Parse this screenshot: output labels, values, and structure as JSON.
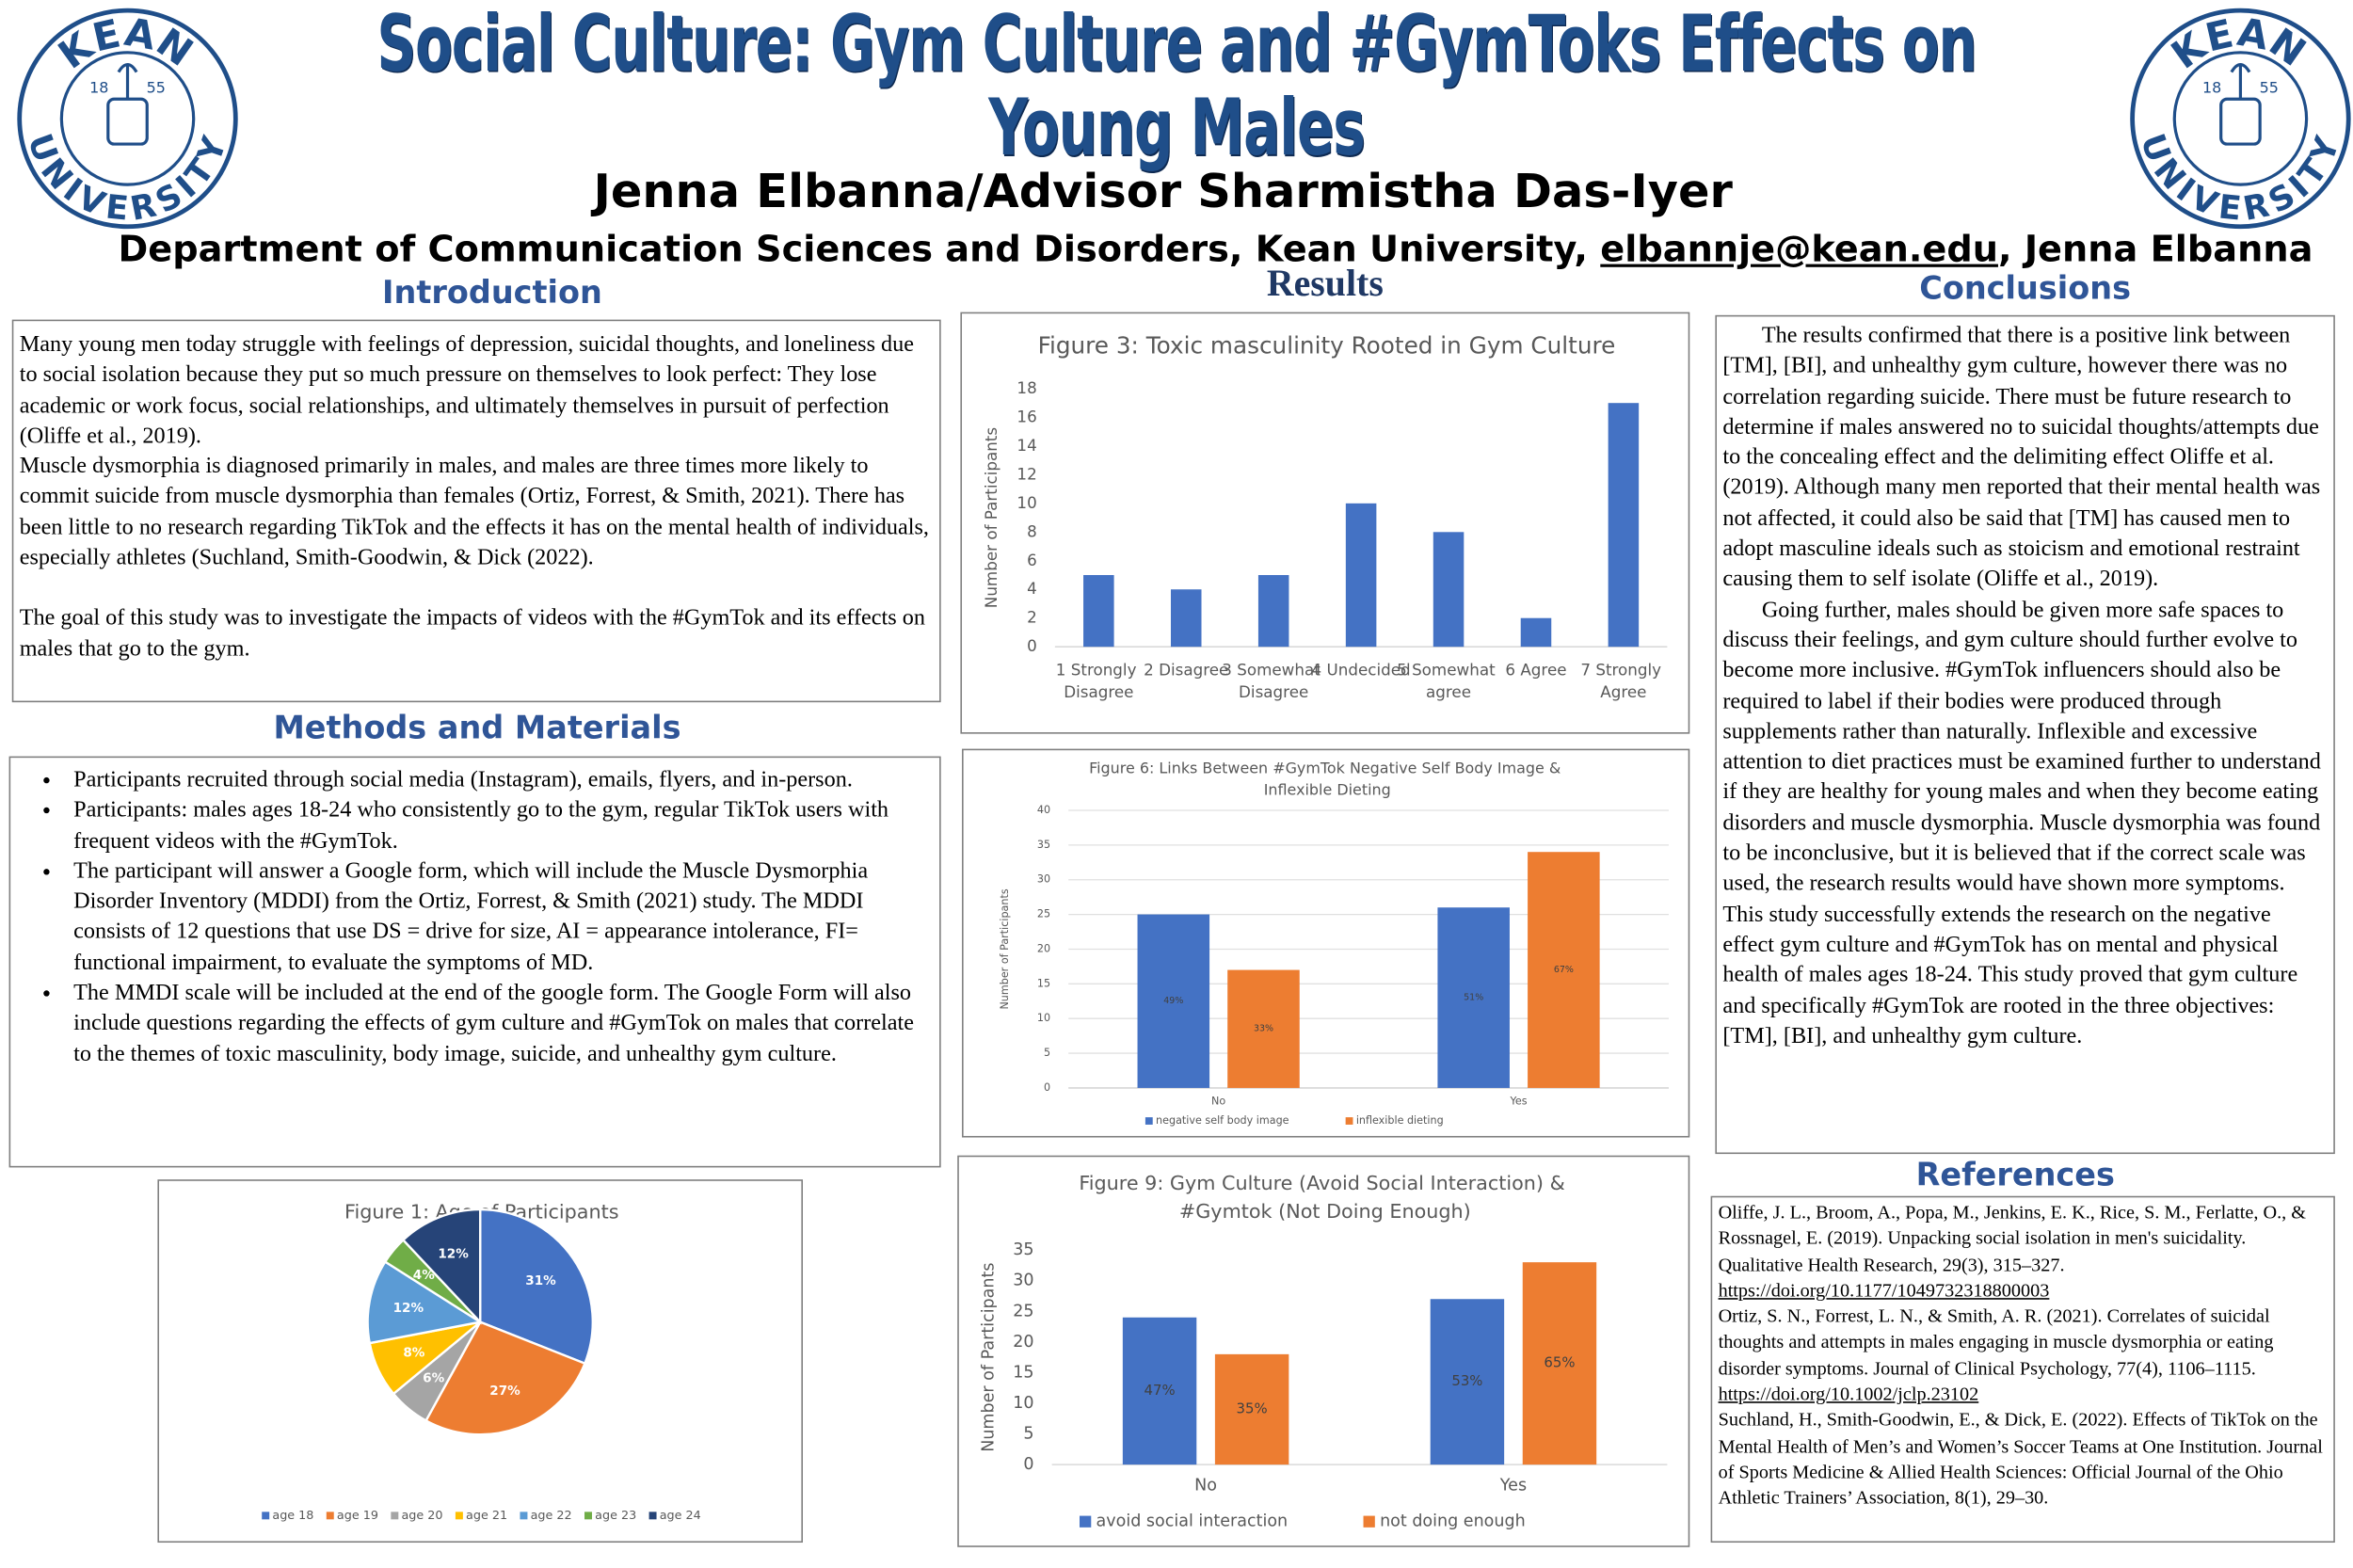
{
  "header": {
    "title": "Social Culture: Gym Culture and #GymToks Effects on  Young Males",
    "author": "Jenna Elbanna/Advisor Sharmistha Das-Iyer",
    "department": {
      "text": "Department of Communication Sciences and Disorders, Kean University, ",
      "email": "elbannje@kean.edu",
      "suffix": ", Jenna Elbanna"
    }
  },
  "logo": {
    "top": "KEAN",
    "bottom": "UNIVERSITY",
    "founded": [
      "18",
      "55"
    ]
  },
  "introduction": {
    "heading": "Introduction",
    "paragraphs": [
      "Many young men today struggle with feelings of depression, suicidal thoughts, and loneliness due to social isolation because they put so much pressure on themselves to look perfect: They lose academic or work focus, social relationships, and ultimately themselves in pursuit of perfection (Oliffe et al., 2019).",
      "Muscle dysmorphia is diagnosed primarily in males, and males are three times more likely to commit suicide from muscle dysmorphia than females (Ortiz, Forrest, & Smith, 2021). There has been little to no research regarding TikTok and the effects it has on the mental health of individuals, especially athletes (Suchland, Smith-Goodwin, & Dick (2022).",
      "The goal of this study was to investigate the impacts of videos with the #GymTok and its effects on males that go to the gym."
    ]
  },
  "methods": {
    "heading": "Methods and Materials",
    "bullets": [
      "Participants recruited through social media (Instagram), emails, flyers, and in-person.",
      "Participants: males ages 18-24 who consistently go to the gym, regular TikTok users with frequent videos with the #GymTok.",
      "The participant will answer a Google form, which will include the Muscle Dysmorphia Disorder Inventory (MDDI) from the Ortiz, Forrest, & Smith (2021) study. The MDDI consists of 12 questions that use DS = drive for size, AI = appearance intolerance, FI= functional impairment, to evaluate the symptoms of MD.",
      "The MMDI scale will be included at the end of the google form. The Google Form will also include questions regarding the effects of gym culture and #GymTok on males that correlate to the themes of toxic masculinity, body image, suicide, and unhealthy gym culture."
    ]
  },
  "results": {
    "heading": "Results"
  },
  "conclusions": {
    "heading": "Conclusions",
    "paragraphs": [
      "The results confirmed that there is a positive link between [TM], [BI], and unhealthy gym culture, however there was no correlation regarding suicide. There must be future research to determine if males answered no to suicidal thoughts/attempts due to the concealing effect and the delimiting effect Oliffe et al. (2019). Although many men reported that their mental health was not affected, it could also be said that [TM] has caused men to adopt masculine ideals such as stoicism and emotional restraint causing them to self isolate (Oliffe et al., 2019).",
      "Going further, males should be given more safe spaces to discuss their feelings, and gym culture should further evolve to become more inclusive. #GymTok influencers should also be required to label if their bodies were produced through supplements rather than naturally. Inflexible and excessive attention to diet practices must be examined further to understand if they are healthy for young males and when they become eating disorders and muscle dysmorphia. Muscle dysmorphia was found to be inconclusive, but it is believed that if the correct scale was used, the research results would have shown more symptoms. This study successfully extends the research on the negative effect gym culture and #GymTok has on mental and physical health of males ages 18-24. This study proved that gym culture and specifically #GymTok are rooted in the three objectives: [TM], [BI], and unhealthy gym culture."
    ]
  },
  "references": {
    "heading": "References",
    "entries": [
      {
        "text": "Oliffe, J. L., Broom, A., Popa, M., Jenkins, E. K., Rice, S. M., Ferlatte, O., & Rossnagel, E. (2019). Unpacking social isolation in men's suicidality. Qualitative Health Research, 29(3), 315–327. ",
        "url": "https://doi.org/10.1177/1049732318800003"
      },
      {
        "text": "Ortiz, S. N., Forrest, L. N., & Smith, A. R. (2021). Correlates of suicidal thoughts and attempts in males engaging in muscle dysmorphia or eating disorder symptoms. Journal of Clinical Psychology, 77(4), 1106–1115. ",
        "url": "https://doi.org/10.1002/jclp.23102"
      },
      {
        "text": "Suchland, H., Smith-Goodwin, E., & Dick, E. (2022). Effects of TikTok on the Mental Health of Men’s and Women’s Soccer Teams at One Institution. Journal of Sports Medicine & Allied Health Sciences: Official Journal of the Ohio Athletic Trainers’ Association, 8(1), 29–30."
      }
    ]
  },
  "chart_data": [
    {
      "type": "bar",
      "title": "Figure 3: Toxic masculinity Rooted in Gym Culture",
      "y_label": "Number of Participants",
      "categories": [
        "1 Strongly Disagree",
        "2 Disagree",
        "3 Somewhat Disagree",
        "4 Undecided",
        "5 Somewhat agree",
        "6 Agree",
        "7 Strongly Agree"
      ],
      "values": [
        5,
        4,
        5,
        10,
        8,
        2,
        17
      ],
      "color": "#4472c4",
      "ylim": [
        0,
        18
      ],
      "yticks": [
        0,
        2,
        4,
        6,
        8,
        10,
        12,
        14,
        16,
        18
      ],
      "grid": false
    },
    {
      "type": "bar",
      "title": "Figure 6: Links Between #GymTok Negative Self Body Image & Inflexible Dieting",
      "y_label": "Number of Participants",
      "categories": [
        "No",
        "Yes"
      ],
      "series": [
        {
          "name": "negative self body image",
          "color": "#4472c4",
          "values": [
            25,
            26
          ],
          "percent_labels": [
            "49%",
            "51%"
          ]
        },
        {
          "name": "inflexible dieting",
          "color": "#ed7d31",
          "values": [
            17,
            34
          ],
          "percent_labels": [
            "33%",
            "67%"
          ]
        }
      ],
      "ylim": [
        0,
        40
      ],
      "yticks": [
        0,
        5,
        10,
        15,
        20,
        25,
        30,
        35,
        40
      ],
      "grid": true
    },
    {
      "type": "bar",
      "title": "Figure 9: Gym Culture (Avoid Social Interaction) & #Gymtok (Not Doing Enough)",
      "y_label": "Number of Participants",
      "categories": [
        "No",
        "Yes"
      ],
      "series": [
        {
          "name": "avoid social interaction",
          "color": "#4472c4",
          "values": [
            24,
            27
          ],
          "percent_labels": [
            "47%",
            "53%"
          ]
        },
        {
          "name": "not doing enough",
          "color": "#ed7d31",
          "values": [
            18,
            33
          ],
          "percent_labels": [
            "35%",
            "65%"
          ]
        }
      ],
      "ylim": [
        0,
        35
      ],
      "yticks": [
        0,
        5,
        10,
        15,
        20,
        25,
        30,
        35
      ],
      "grid": false
    },
    {
      "type": "pie",
      "title": "Figure 1: Age of Participants",
      "categories": [
        "age 18",
        "age 19",
        "age 20",
        "age 21",
        "age 22",
        "age 23",
        "age 24"
      ],
      "values": [
        31,
        27,
        6,
        8,
        12,
        4,
        12
      ],
      "value_labels": [
        "31%",
        "27%",
        "6%",
        "8%",
        "12%",
        "4%",
        "12%"
      ],
      "colors": [
        "#4472c4",
        "#ed7d31",
        "#a5a5a5",
        "#ffc000",
        "#5b9bd5",
        "#70ad47",
        "#264478"
      ]
    }
  ]
}
